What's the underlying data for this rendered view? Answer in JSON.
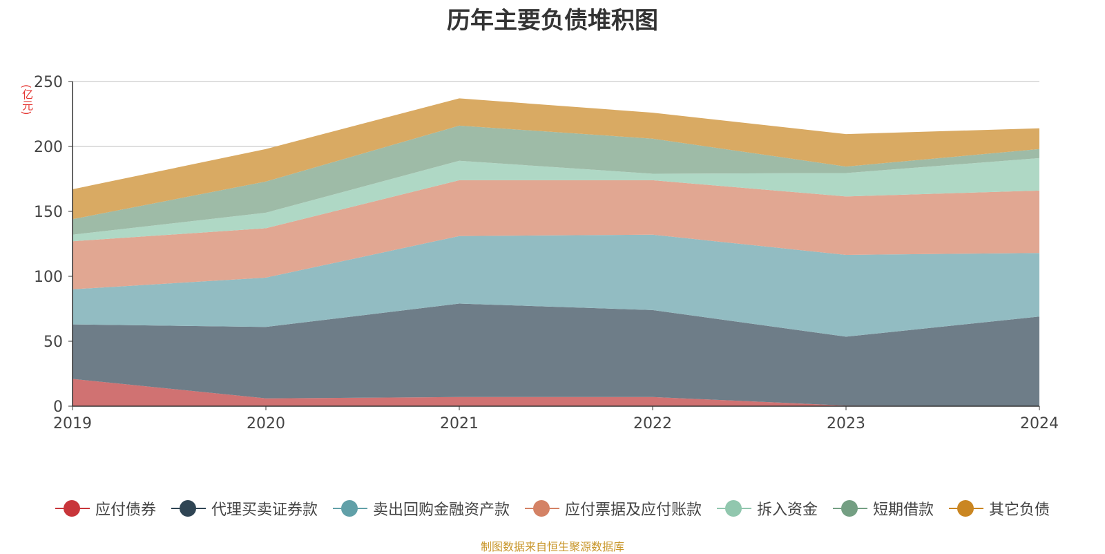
{
  "chart_data": {
    "type": "area",
    "stacked": true,
    "title": "历年主要负债堆积图",
    "ylabel": "(亿元)",
    "xlabel": "",
    "categories": [
      "2019",
      "2020",
      "2021",
      "2022",
      "2023",
      "2024"
    ],
    "ylim": [
      0,
      250
    ],
    "yticks": [
      0,
      50,
      100,
      150,
      200,
      250
    ],
    "grid": true,
    "legend_position": "bottom",
    "series": [
      {
        "name": "应付债券",
        "color": "#d07272",
        "marker": "#c8353a",
        "values": [
          21,
          6,
          7,
          7,
          0.5,
          0
        ]
      },
      {
        "name": "代理买卖证券款",
        "color": "#6e7d88",
        "marker": "#2f4554",
        "values": [
          42,
          55,
          72,
          67,
          53,
          69
        ]
      },
      {
        "name": "卖出回购金融资产款",
        "color": "#92bcc2",
        "marker": "#61a0a8",
        "values": [
          27,
          38,
          52,
          58,
          63,
          49
        ]
      },
      {
        "name": "应付票据及应付账款",
        "color": "#e1a792",
        "marker": "#d48265",
        "values": [
          37,
          38,
          43,
          42,
          45,
          48
        ]
      },
      {
        "name": "拆入资金",
        "color": "#afd8c5",
        "marker": "#91c7ae",
        "values": [
          5,
          12,
          15,
          5,
          18,
          25
        ]
      },
      {
        "name": "短期借款",
        "color": "#9ebba7",
        "marker": "#749f83",
        "values": [
          12,
          24,
          27,
          27,
          5,
          7
        ]
      },
      {
        "name": "其它负债",
        "color": "#d9aa63",
        "marker": "#ca8622",
        "values": [
          23,
          25,
          21,
          20,
          25,
          16
        ]
      }
    ]
  },
  "source_text": "制图数据来自恒生聚源数据库"
}
